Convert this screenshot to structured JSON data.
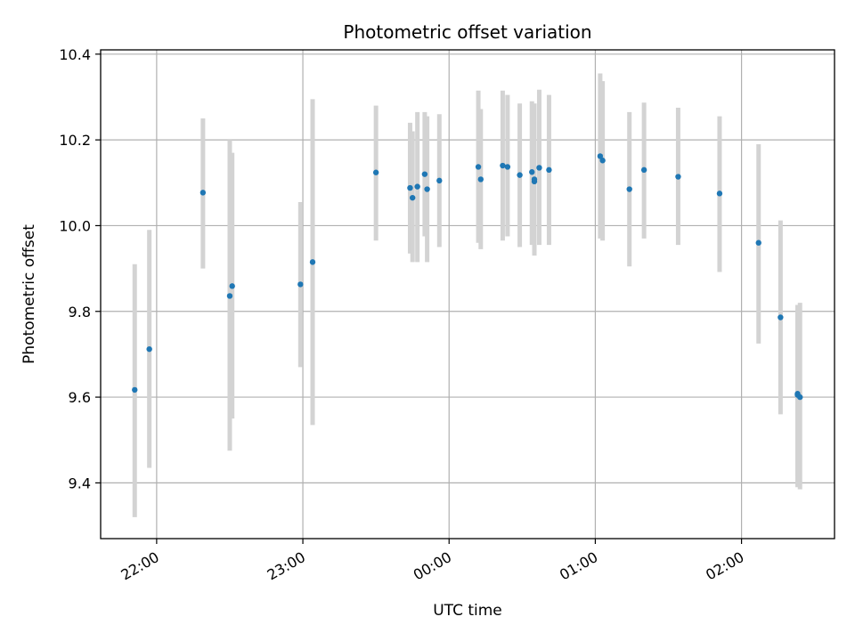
{
  "chart_data": {
    "type": "scatter",
    "title": "Photometric offset variation",
    "xlabel": "UTC time",
    "ylabel": "Photometric offset",
    "x_axis": {
      "unit": "hours (UTC); 22:00 = 22.0, 02:00 = 26.0",
      "range": [
        21.617,
        26.636
      ],
      "ticks": [
        22,
        23,
        24,
        25,
        26
      ],
      "tick_labels": [
        "22:00",
        "23:00",
        "00:00",
        "01:00",
        "02:00"
      ],
      "tick_label_rotation": "30 degrees"
    },
    "y_axis": {
      "range": [
        9.27,
        10.41
      ],
      "ticks": [
        9.4,
        9.6,
        9.8,
        10.0,
        10.2,
        10.4
      ],
      "tick_labels": [
        "9.4",
        "9.6",
        "9.8",
        "10.0",
        "10.2",
        "10.4"
      ]
    },
    "grid": true,
    "series": [
      {
        "marker": "dot",
        "marker_color": "#1f77b4",
        "errorbar_color": "#d3d3d3",
        "points": [
          {
            "t": "21:51",
            "y": 9.617,
            "err": [
              9.32,
              9.91
            ]
          },
          {
            "t": "21:57",
            "y": 9.712,
            "err": [
              9.435,
              9.99
            ]
          },
          {
            "t": "22:19",
            "y": 10.077,
            "err": [
              9.9,
              10.25
            ]
          },
          {
            "t": "22:30",
            "y": 9.836,
            "err": [
              9.475,
              10.2
            ]
          },
          {
            "t": "22:31",
            "y": 9.859,
            "err": [
              9.55,
              10.17
            ]
          },
          {
            "t": "22:59",
            "y": 9.863,
            "err": [
              9.67,
              10.055
            ]
          },
          {
            "t": "23:04",
            "y": 9.915,
            "err": [
              9.535,
              10.295
            ]
          },
          {
            "t": "23:30",
            "y": 10.124,
            "err": [
              9.965,
              10.28
            ]
          },
          {
            "t": "23:44",
            "y": 10.088,
            "err": [
              9.935,
              10.24
            ]
          },
          {
            "t": "23:45",
            "y": 10.065,
            "err": [
              9.915,
              10.22
            ]
          },
          {
            "t": "23:47",
            "y": 10.091,
            "err": [
              9.915,
              10.265
            ]
          },
          {
            "t": "23:50",
            "y": 10.12,
            "err": [
              9.975,
              10.265
            ]
          },
          {
            "t": "23:51",
            "y": 10.085,
            "err": [
              9.915,
              10.255
            ]
          },
          {
            "t": "23:56",
            "y": 10.105,
            "err": [
              9.95,
              10.26
            ]
          },
          {
            "t": "00:12",
            "y": 10.137,
            "err": [
              9.96,
              10.315
            ]
          },
          {
            "t": "00:13",
            "y": 10.108,
            "err": [
              9.945,
              10.272
            ]
          },
          {
            "t": "00:22",
            "y": 10.14,
            "err": [
              9.965,
              10.315
            ]
          },
          {
            "t": "00:24",
            "y": 10.137,
            "err": [
              9.975,
              10.305
            ]
          },
          {
            "t": "00:29",
            "y": 10.118,
            "err": [
              9.95,
              10.285
            ]
          },
          {
            "t": "00:34",
            "y": 10.125,
            "err": [
              9.955,
              10.29
            ]
          },
          {
            "t": "00:35",
            "y": 10.103,
            "err": [
              9.935,
              10.285
            ]
          },
          {
            "t": "00:35",
            "y": 10.108,
            "err": [
              9.93,
              10.28
            ]
          },
          {
            "t": "00:37",
            "y": 10.135,
            "err": [
              9.955,
              10.317
            ]
          },
          {
            "t": "00:41",
            "y": 10.13,
            "err": [
              9.955,
              10.305
            ]
          },
          {
            "t": "01:02",
            "y": 10.162,
            "err": [
              9.97,
              10.355
            ]
          },
          {
            "t": "01:03",
            "y": 10.152,
            "err": [
              9.965,
              10.337
            ]
          },
          {
            "t": "01:14",
            "y": 10.085,
            "err": [
              9.905,
              10.265
            ]
          },
          {
            "t": "01:20",
            "y": 10.13,
            "err": [
              9.97,
              10.287
            ]
          },
          {
            "t": "01:34",
            "y": 10.114,
            "err": [
              9.955,
              10.275
            ]
          },
          {
            "t": "01:51",
            "y": 10.075,
            "err": [
              9.892,
              10.255
            ]
          },
          {
            "t": "02:07",
            "y": 9.96,
            "err": [
              9.725,
              10.19
            ]
          },
          {
            "t": "02:16",
            "y": 9.786,
            "err": [
              9.56,
              10.012
            ]
          },
          {
            "t": "02:23",
            "y": 9.608,
            "err": [
              9.415,
              9.8
            ]
          },
          {
            "t": "02:23",
            "y": 9.605,
            "err": [
              9.39,
              9.815
            ]
          },
          {
            "t": "02:24",
            "y": 9.6,
            "err": [
              9.385,
              9.82
            ]
          }
        ]
      }
    ]
  }
}
